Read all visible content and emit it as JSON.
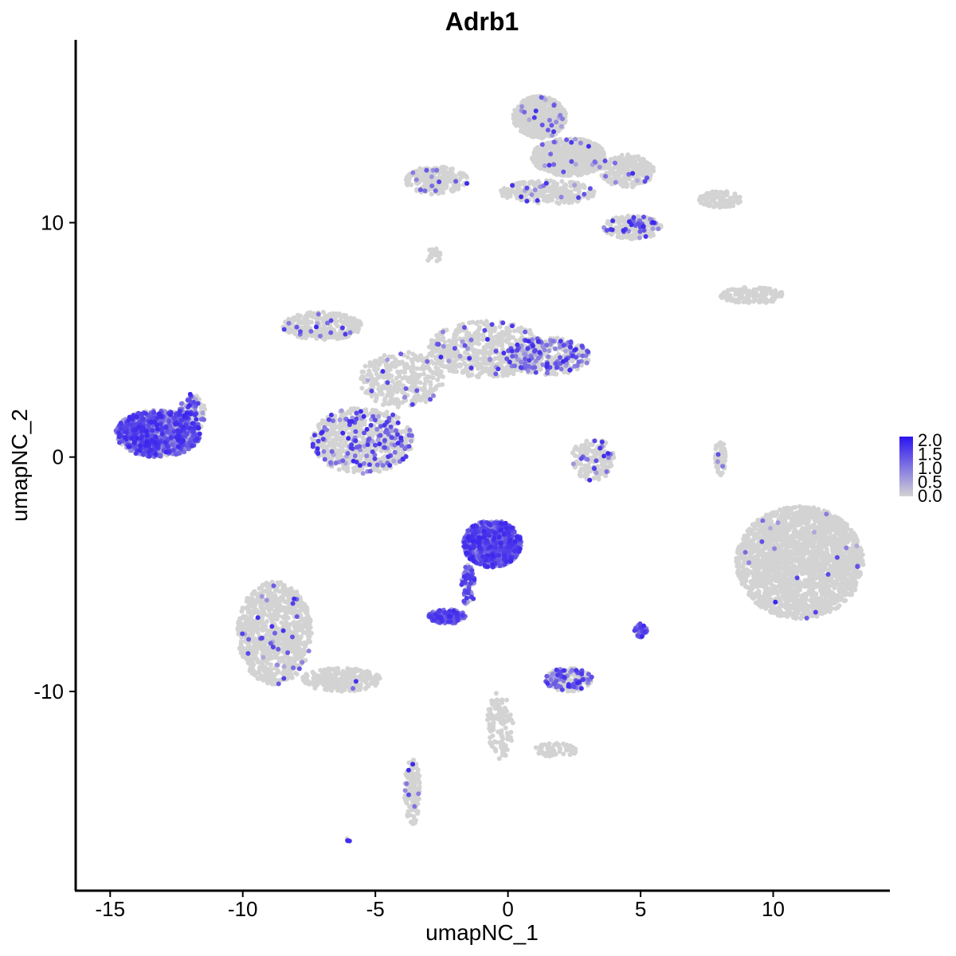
{
  "chart_data": {
    "type": "scatter",
    "title": "Adrb1",
    "xlabel": "umapNC_1",
    "ylabel": "umapNC_2",
    "xlim": [
      -16.3,
      14.4
    ],
    "ylim": [
      -18.5,
      17.8
    ],
    "x_ticks": [
      -15,
      -10,
      -5,
      0,
      5,
      10
    ],
    "y_ticks": [
      -10,
      0,
      10
    ],
    "x_tick_labels": [
      "-15",
      "-10",
      "-5",
      "0",
      "5",
      "10"
    ],
    "y_tick_labels": [
      "-10",
      "0",
      "10"
    ],
    "grid": false,
    "color_scale": {
      "low": "#d3d3d3",
      "high": "#2c14f0",
      "min": 0.0,
      "max": 2.0,
      "ticks": [
        2.0,
        1.5,
        1.0,
        0.5,
        0.0
      ],
      "tick_labels": [
        "2.0",
        "1.5",
        "1.0",
        "0.5",
        "0.0"
      ],
      "placement": "right"
    },
    "clusters": [
      {
        "name": "A",
        "cx": 1.2,
        "cy": 14.5,
        "rx": 1.0,
        "ry": 0.9,
        "n": 700,
        "expr": 0.03
      },
      {
        "name": "A2",
        "cx": 2.3,
        "cy": 12.8,
        "rx": 1.4,
        "ry": 0.8,
        "n": 650,
        "expr": 0.03
      },
      {
        "name": "A3",
        "cx": 4.5,
        "cy": 12.2,
        "rx": 1.0,
        "ry": 0.7,
        "n": 300,
        "expr": 0.03
      },
      {
        "name": "A4",
        "cx": 4.7,
        "cy": 9.8,
        "rx": 1.1,
        "ry": 0.5,
        "n": 220,
        "expr": 0.18
      },
      {
        "name": "A5",
        "cx": 1.5,
        "cy": 11.3,
        "rx": 1.8,
        "ry": 0.5,
        "n": 250,
        "expr": 0.05
      },
      {
        "name": "B",
        "cx": -2.7,
        "cy": 11.8,
        "rx": 1.2,
        "ry": 0.6,
        "n": 220,
        "expr": 0.07
      },
      {
        "name": "C",
        "cx": -2.8,
        "cy": 8.6,
        "rx": 0.3,
        "ry": 0.3,
        "n": 25,
        "expr": 0.0
      },
      {
        "name": "D",
        "cx": -7.0,
        "cy": 5.6,
        "rx": 1.5,
        "ry": 0.6,
        "n": 260,
        "expr": 0.05
      },
      {
        "name": "E",
        "cx": -0.8,
        "cy": 4.6,
        "rx": 2.2,
        "ry": 1.2,
        "n": 600,
        "expr": 0.05
      },
      {
        "name": "F",
        "cx": 1.5,
        "cy": 4.3,
        "rx": 1.6,
        "ry": 0.8,
        "n": 320,
        "expr": 0.35
      },
      {
        "name": "G",
        "cx": -4.0,
        "cy": 3.3,
        "rx": 1.6,
        "ry": 1.2,
        "n": 320,
        "expr": 0.03
      },
      {
        "name": "H",
        "cx": -5.5,
        "cy": 0.7,
        "rx": 1.9,
        "ry": 1.4,
        "n": 700,
        "expr": 0.18
      },
      {
        "name": "I",
        "cx": -13.2,
        "cy": 1.0,
        "rx": 1.6,
        "ry": 1.0,
        "n": 1100,
        "expr": 0.6
      },
      {
        "name": "I2",
        "cx": -11.9,
        "cy": 1.9,
        "rx": 0.5,
        "ry": 0.8,
        "n": 120,
        "expr": 0.5
      },
      {
        "name": "J",
        "cx": 3.2,
        "cy": -0.1,
        "rx": 0.8,
        "ry": 0.9,
        "n": 180,
        "expr": 0.07
      },
      {
        "name": "K",
        "cx": 8.0,
        "cy": 11.0,
        "rx": 0.8,
        "ry": 0.35,
        "n": 90,
        "expr": 0.0
      },
      {
        "name": "K2",
        "cx": 9.2,
        "cy": 6.9,
        "rx": 1.2,
        "ry": 0.35,
        "n": 140,
        "expr": 0.0
      },
      {
        "name": "L",
        "cx": 8.0,
        "cy": 0.0,
        "rx": 0.2,
        "ry": 0.8,
        "n": 60,
        "expr": 0.05
      },
      {
        "name": "M",
        "cx": 11.0,
        "cy": -4.5,
        "rx": 2.4,
        "ry": 2.4,
        "n": 2200,
        "expr": 0.01
      },
      {
        "name": "N",
        "cx": -0.6,
        "cy": -3.7,
        "rx": 1.1,
        "ry": 1.0,
        "n": 800,
        "expr": 1.0
      },
      {
        "name": "N2",
        "cx": -2.3,
        "cy": -6.8,
        "rx": 0.7,
        "ry": 0.3,
        "n": 150,
        "expr": 0.95
      },
      {
        "name": "N3",
        "cx": -1.5,
        "cy": -5.5,
        "rx": 0.25,
        "ry": 0.9,
        "n": 60,
        "expr": 0.85
      },
      {
        "name": "O",
        "cx": 5.0,
        "cy": -7.4,
        "rx": 0.25,
        "ry": 0.3,
        "n": 40,
        "expr": 0.9
      },
      {
        "name": "P",
        "cx": 2.3,
        "cy": -9.5,
        "rx": 0.9,
        "ry": 0.5,
        "n": 200,
        "expr": 0.35
      },
      {
        "name": "Q",
        "cx": -8.8,
        "cy": -7.5,
        "rx": 1.4,
        "ry": 2.2,
        "n": 900,
        "expr": 0.03
      },
      {
        "name": "Q2",
        "cx": -6.3,
        "cy": -9.5,
        "rx": 1.5,
        "ry": 0.5,
        "n": 250,
        "expr": 0.02
      },
      {
        "name": "R",
        "cx": -3.6,
        "cy": -14.3,
        "rx": 0.3,
        "ry": 1.4,
        "n": 120,
        "expr": 0.05
      },
      {
        "name": "S",
        "cx": -0.3,
        "cy": -11.5,
        "rx": 0.5,
        "ry": 1.5,
        "n": 120,
        "expr": 0.0
      },
      {
        "name": "S2",
        "cx": 1.8,
        "cy": -12.5,
        "rx": 0.8,
        "ry": 0.3,
        "n": 60,
        "expr": 0.0
      },
      {
        "name": "T",
        "cx": -6.0,
        "cy": -16.3,
        "rx": 0.1,
        "ry": 0.1,
        "n": 4,
        "expr": 0.8
      }
    ]
  }
}
